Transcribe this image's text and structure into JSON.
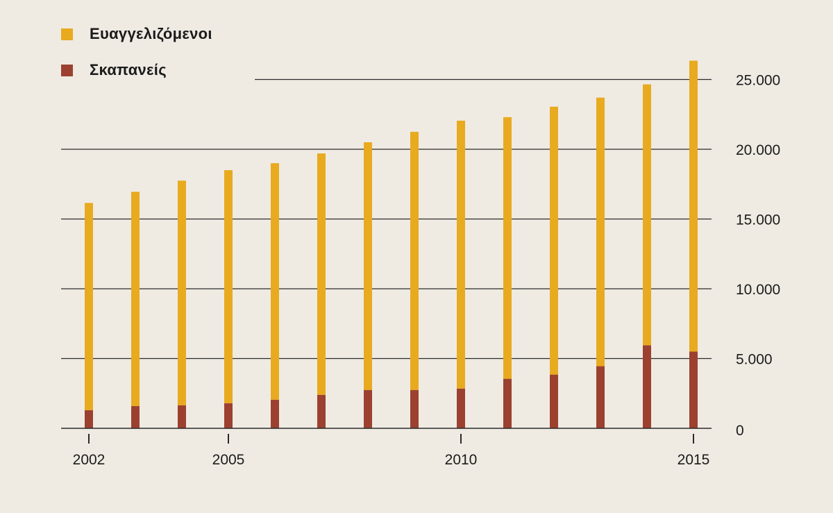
{
  "chart_data": {
    "type": "bar",
    "stacked": true,
    "x": [
      2002,
      2003,
      2004,
      2005,
      2006,
      2007,
      2008,
      2009,
      2010,
      2011,
      2012,
      2013,
      2014,
      2015
    ],
    "x_tick_labels": [
      "2002",
      "2005",
      "2010",
      "2015"
    ],
    "series": [
      {
        "name": "Σκαπανείς",
        "color": "#9c4130",
        "values": [
          1300,
          1600,
          1650,
          1800,
          2050,
          2400,
          2750,
          2750,
          2850,
          3550,
          3850,
          4450,
          5950,
          5500
        ]
      },
      {
        "name": "Ευαγγελιζόμενοι",
        "color": "#e8aa1f",
        "values": [
          14850,
          15350,
          16100,
          16700,
          16950,
          17300,
          17750,
          18500,
          19200,
          18750,
          19200,
          19250,
          18700,
          20850
        ]
      }
    ],
    "y_ticks": [
      0,
      5000,
      10000,
      15000,
      20000,
      25000
    ],
    "y_tick_labels": [
      "0",
      "5.000",
      "10.000",
      "15.000",
      "20.000",
      "25.000"
    ],
    "ylim": [
      0,
      25000
    ],
    "grid": true,
    "legend_position": "top-left",
    "y_axis_position": "right"
  }
}
